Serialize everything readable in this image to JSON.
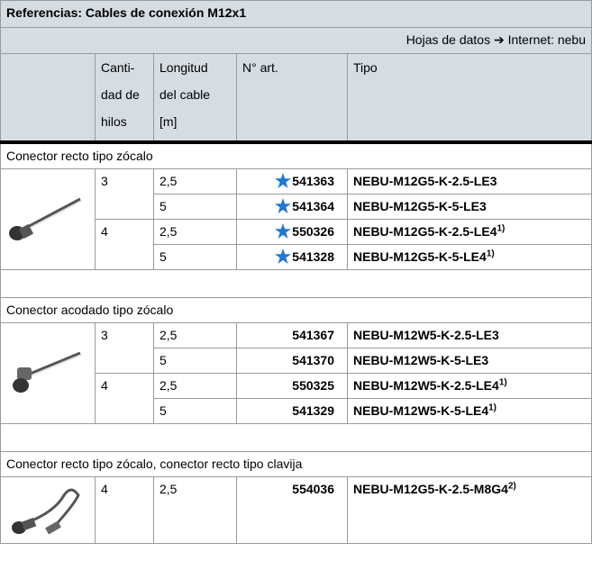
{
  "header": {
    "title": "Referencias: Cables de conexión M12x1",
    "note": "Hojas de datos ➔ Internet: nebu"
  },
  "columns": [
    {
      "lines": [
        "Canti-",
        "dad de",
        "hilos"
      ]
    },
    {
      "lines": [
        "Longitud",
        "del cable",
        "[m]"
      ]
    },
    {
      "lines": [
        "N° art."
      ]
    },
    {
      "lines": [
        "Tipo"
      ]
    }
  ],
  "sections": [
    {
      "title": "Conector recto tipo zócalo",
      "icon": "straight",
      "rows": [
        {
          "wires": "3",
          "length": "2,5",
          "star": true,
          "part": "541363",
          "type": "NEBU-M12G5-K-2.5-LE3"
        },
        {
          "length": "5",
          "star": true,
          "part": "541364",
          "type": "NEBU-M12G5-K-5-LE3"
        },
        {
          "wires": "4",
          "length": "2,5",
          "star": true,
          "part": "550326",
          "type": "NEBU-M12G5-K-2.5-LE4",
          "note": "1)"
        },
        {
          "length": "5",
          "star": true,
          "part": "541328",
          "type": "NEBU-M12G5-K-5-LE4",
          "note": "1)"
        }
      ]
    },
    {
      "title": "Conector acodado tipo zócalo",
      "icon": "angled",
      "rows": [
        {
          "wires": "3",
          "length": "2,5",
          "star": false,
          "part": "541367",
          "type": "NEBU-M12W5-K-2.5-LE3"
        },
        {
          "length": "5",
          "star": false,
          "part": "541370",
          "type": "NEBU-M12W5-K-5-LE3"
        },
        {
          "wires": "4",
          "length": "2,5",
          "star": false,
          "part": "550325",
          "type": "NEBU-M12W5-K-2.5-LE4",
          "note": "1)"
        },
        {
          "length": "5",
          "star": false,
          "part": "541329",
          "type": "NEBU-M12W5-K-5-LE4",
          "note": "1)"
        }
      ]
    },
    {
      "title": "Conector recto tipo zócalo, conector recto tipo clavija",
      "icon": "double",
      "rows": [
        {
          "wires": "4",
          "length": "2,5",
          "star": false,
          "part": "554036",
          "type": "NEBU-M12G5-K-2.5-M8G4",
          "note": "2)"
        }
      ]
    }
  ]
}
